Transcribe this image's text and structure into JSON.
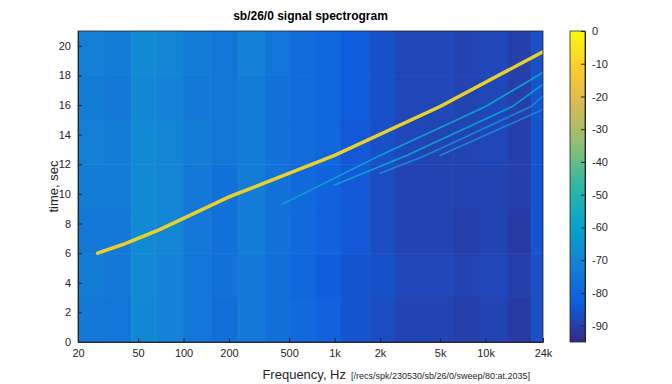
{
  "chart_data": {
    "type": "heatmap",
    "title": "sb/26/0 signal spectrogram",
    "xlabel": "Frequency, Hz",
    "ylabel": "time, sec",
    "annotation": "[/recs/spk/230530/sb/26/0/sweep/80:at.2035]",
    "log": "x",
    "grid": false,
    "xlim": [
      20,
      24000
    ],
    "xticks": [
      20,
      50,
      100,
      200,
      500,
      {
        "value": 1000,
        "label": "1k"
      },
      {
        "value": 2000,
        "label": "2k"
      },
      {
        "value": 5000,
        "label": "5k"
      },
      {
        "value": 10000,
        "label": "10k"
      },
      {
        "value": 24000,
        "label": "24k"
      }
    ],
    "ylim": [
      0,
      21
    ],
    "yticks": [
      0,
      2,
      4,
      6,
      8,
      10,
      12,
      14,
      16,
      18,
      20
    ],
    "x_edges": [
      20,
      30,
      45,
      65,
      100,
      150,
      230,
      350,
      500,
      750,
      1100,
      1700,
      2500,
      4000,
      6000,
      9000,
      14000,
      20000,
      24000
    ],
    "y_edges": [
      0,
      3,
      6,
      9,
      12,
      15,
      18,
      21
    ],
    "cells": [
      [
        -74,
        -75,
        -69,
        -71,
        -75,
        -77,
        -74,
        -77,
        -79,
        -81,
        -85,
        -87,
        -89,
        -89,
        -90,
        -89,
        -91,
        -86
      ],
      [
        -73,
        -74,
        -68,
        -71,
        -75,
        -76,
        -74,
        -77,
        -80,
        -82,
        -85,
        -86,
        -88,
        -88,
        -89,
        -88,
        -90,
        -86
      ],
      [
        -74,
        -74,
        -68,
        -70,
        -74,
        -76,
        -73,
        -76,
        -79,
        -81,
        -84,
        -87,
        -89,
        -89,
        -90,
        -89,
        -91,
        -85
      ],
      [
        -73,
        -73,
        -68,
        -70,
        -74,
        -76,
        -73,
        -76,
        -79,
        -81,
        -84,
        -87,
        -89,
        -89,
        -89,
        -89,
        -90,
        -85
      ],
      [
        -72,
        -73,
        -68,
        -70,
        -73,
        -75,
        -73,
        -76,
        -78,
        -80,
        -84,
        -86,
        -88,
        -89,
        -89,
        -88,
        -90,
        -85
      ],
      [
        -73,
        -74,
        -69,
        -71,
        -74,
        -75,
        -73,
        -76,
        -78,
        -80,
        -83,
        -86,
        -88,
        -88,
        -89,
        -88,
        -90,
        -85
      ],
      [
        -72,
        -73,
        -68,
        -70,
        -73,
        -75,
        -72,
        -75,
        -78,
        -80,
        -83,
        -86,
        -88,
        -88,
        -89,
        -88,
        -90,
        -86
      ]
    ],
    "colorbar": {
      "range": [
        -95,
        0
      ],
      "ticks": [
        0,
        -10,
        -20,
        -30,
        -40,
        -50,
        -60,
        -70,
        -80,
        -90
      ]
    },
    "series": [
      {
        "x": [
          27,
          40,
          70,
          200,
          1000,
          5000,
          24000
        ],
        "values": [
          6.0,
          6.6,
          7.6,
          9.8,
          12.6,
          15.9,
          19.6
        ],
        "color": "#e8d22a"
      },
      {
        "x": [
          450,
          2000,
          10000,
          24000
        ],
        "values": [
          9.3,
          12.6,
          15.9,
          18.2
        ],
        "color": "#0aa2cd"
      },
      {
        "x": [
          1000,
          3000,
          15000,
          24000
        ],
        "values": [
          10.6,
          12.6,
          15.9,
          17.4
        ],
        "color": "#0aa2cd"
      },
      {
        "x": [
          2000,
          4000,
          20000,
          24000
        ],
        "values": [
          11.4,
          12.6,
          15.9,
          16.6
        ],
        "color": "#1a86d8"
      },
      {
        "x": [
          5000,
          24000
        ],
        "values": [
          12.6,
          15.7
        ],
        "color": "#1a86d8"
      }
    ]
  }
}
